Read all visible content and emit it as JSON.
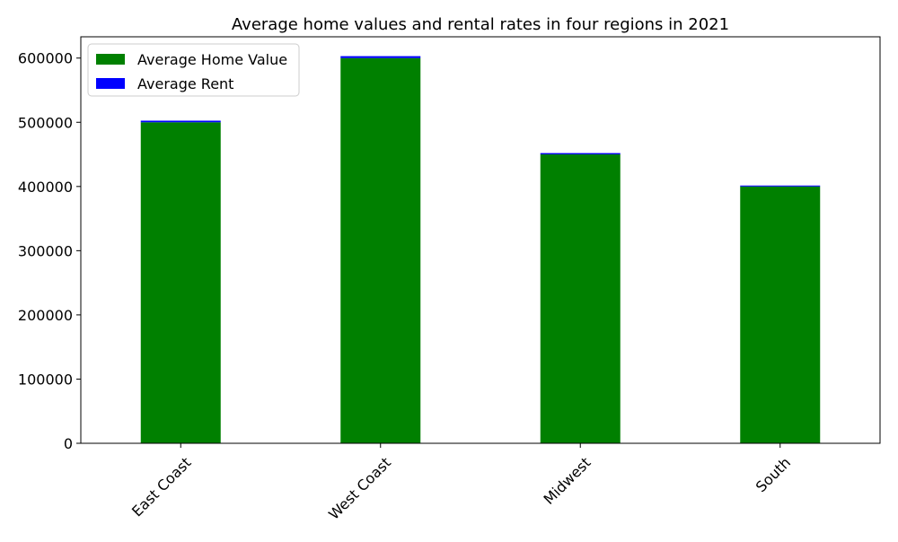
{
  "chart_data": {
    "type": "bar",
    "stacked": true,
    "title": "Average home values and rental rates in four regions in 2021",
    "xlabel": "",
    "ylabel": "",
    "categories": [
      "East Coast",
      "West Coast",
      "Midwest",
      "South"
    ],
    "series": [
      {
        "name": "Average Home Value",
        "color": "#008000",
        "values": [
          500000,
          600000,
          450000,
          400000
        ]
      },
      {
        "name": "Average Rent",
        "color": "#0000ff",
        "values": [
          2500,
          3000,
          2000,
          1500
        ]
      }
    ],
    "ylim": [
      0,
      633150
    ],
    "yticks": [
      0,
      100000,
      200000,
      300000,
      400000,
      500000,
      600000
    ],
    "ytick_labels": [
      "0",
      "100000",
      "200000",
      "300000",
      "400000",
      "500000",
      "600000"
    ],
    "xtick_rotation": 45,
    "grid": false,
    "legend": "upper-left"
  }
}
